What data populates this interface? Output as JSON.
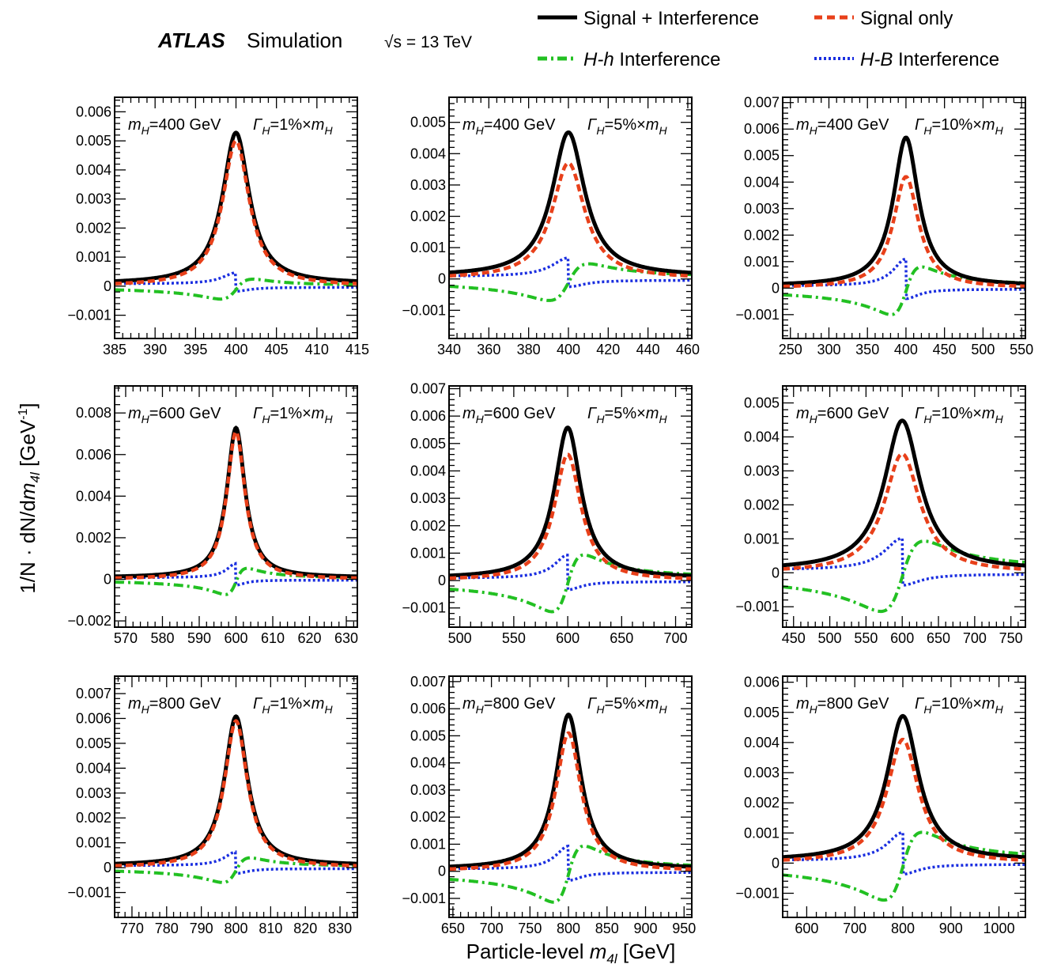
{
  "header": {
    "experiment": "ATLAS",
    "label": "Simulation",
    "energy": "√s = 13 TeV"
  },
  "legend": [
    {
      "label": "Signal + Interference",
      "color": "#000000",
      "style": "solid"
    },
    {
      "label": "Signal only",
      "color": "#e8401a",
      "style": "dashed"
    },
    {
      "label_italic": "H-h",
      "label_rest": " Interference",
      "color": "#22c022",
      "style": "dashdot"
    },
    {
      "label_italic": "H-B",
      "label_rest": " Interference",
      "color": "#1a2ee0",
      "style": "dotted"
    }
  ],
  "y_axis_label": "1/N · dN/dm4l [GeV-1]",
  "x_axis_label": "Particle-level m4l [GeV]",
  "colors": {
    "sig_int": "#000000",
    "sig": "#e8401a",
    "hh": "#22c022",
    "hb": "#1a2ee0"
  },
  "chart_data": [
    {
      "type": "line",
      "mass": 400,
      "width_pct": 1,
      "mass_label": "=400 GeV",
      "width_label": "=1%×",
      "xlim": [
        385,
        415
      ],
      "ylim": [
        -0.0018,
        0.0065
      ],
      "xticks": [
        385,
        390,
        395,
        400,
        405,
        410,
        415
      ],
      "yticks": [
        -0.001,
        0,
        0.001,
        0.002,
        0.003,
        0.004,
        0.005,
        0.006
      ],
      "ytick_labels": [
        "−0.001",
        "0",
        "0.001",
        "0.002",
        "0.003",
        "0.004",
        "0.005",
        "0.006"
      ],
      "peak_sig_int": 0.0052,
      "peak_sig": 0.005,
      "hh_amp": 0.00038,
      "hb_amp": 0.00045
    },
    {
      "type": "line",
      "mass": 400,
      "width_pct": 5,
      "mass_label": "=400 GeV",
      "width_label": "=5%×",
      "xlim": [
        340,
        462
      ],
      "ylim": [
        -0.0019,
        0.0058
      ],
      "xticks": [
        340,
        360,
        380,
        400,
        420,
        440,
        460
      ],
      "yticks": [
        -0.001,
        0,
        0.001,
        0.002,
        0.003,
        0.004,
        0.005
      ],
      "ytick_labels": [
        "−0.001",
        "0",
        "0.001",
        "0.002",
        "0.003",
        "0.004",
        "0.005"
      ],
      "peak_sig_int": 0.0046,
      "peak_sig": 0.0037,
      "hh_amp": 0.00065,
      "hb_amp": 0.0007
    },
    {
      "type": "line",
      "mass": 400,
      "width_pct": 10,
      "mass_label": "=400 GeV",
      "width_label": "=10%×",
      "xlim": [
        240,
        555
      ],
      "ylim": [
        -0.0019,
        0.0072
      ],
      "xticks": [
        250,
        300,
        350,
        400,
        450,
        500,
        550
      ],
      "yticks": [
        -0.001,
        0,
        0.001,
        0.002,
        0.003,
        0.004,
        0.005,
        0.006,
        0.007
      ],
      "ytick_labels": [
        "−0.001",
        "0",
        "0.001",
        "0.002",
        "0.003",
        "0.004",
        "0.005",
        "0.006",
        "0.007"
      ],
      "peak_sig_int": 0.0056,
      "peak_sig": 0.0042,
      "hh_amp": 0.001,
      "hb_amp": 0.0012
    },
    {
      "type": "line",
      "mass": 600,
      "width_pct": 1,
      "mass_label": "=600 GeV",
      "width_label": "=1%×",
      "xlim": [
        567,
        633
      ],
      "ylim": [
        -0.0023,
        0.0093
      ],
      "xticks": [
        570,
        580,
        590,
        600,
        610,
        620,
        630
      ],
      "yticks": [
        -0.002,
        0,
        0.002,
        0.004,
        0.006,
        0.008
      ],
      "ytick_labels": [
        "−0.002",
        "0",
        "0.002",
        "0.004",
        "0.006",
        "0.008"
      ],
      "peak_sig_int": 0.0072,
      "peak_sig": 0.0071,
      "hh_amp": 0.0007,
      "hb_amp": 0.0008
    },
    {
      "type": "line",
      "mass": 600,
      "width_pct": 5,
      "mass_label": "=600 GeV",
      "width_label": "=5%×",
      "xlim": [
        490,
        715
      ],
      "ylim": [
        -0.0017,
        0.0071
      ],
      "xticks": [
        500,
        550,
        600,
        650,
        700
      ],
      "yticks": [
        -0.001,
        0,
        0.001,
        0.002,
        0.003,
        0.004,
        0.005,
        0.006,
        0.007
      ],
      "ytick_labels": [
        "−0.001",
        "0",
        "0.001",
        "0.002",
        "0.003",
        "0.004",
        "0.005",
        "0.006",
        "0.007"
      ],
      "peak_sig_int": 0.0055,
      "peak_sig": 0.0046,
      "hh_amp": 0.00115,
      "hb_amp": 0.001
    },
    {
      "type": "line",
      "mass": 600,
      "width_pct": 10,
      "mass_label": "=600 GeV",
      "width_label": "=10%×",
      "xlim": [
        435,
        770
      ],
      "ylim": [
        -0.0016,
        0.0055
      ],
      "xticks": [
        450,
        500,
        550,
        600,
        650,
        700,
        750
      ],
      "yticks": [
        -0.001,
        0,
        0.001,
        0.002,
        0.003,
        0.004,
        0.005
      ],
      "ytick_labels": [
        "−0.001",
        "0",
        "0.001",
        "0.002",
        "0.003",
        "0.004",
        "0.005"
      ],
      "peak_sig_int": 0.0044,
      "peak_sig": 0.0035,
      "hh_amp": 0.00115,
      "hb_amp": 0.0011
    },
    {
      "type": "line",
      "mass": 800,
      "width_pct": 1,
      "mass_label": "=800 GeV",
      "width_label": "=1%×",
      "xlim": [
        765,
        835
      ],
      "ylim": [
        -0.002,
        0.0077
      ],
      "xticks": [
        770,
        780,
        790,
        800,
        810,
        820,
        830
      ],
      "yticks": [
        -0.001,
        0,
        0.001,
        0.002,
        0.003,
        0.004,
        0.005,
        0.006,
        0.007
      ],
      "ytick_labels": [
        "−0.001",
        "0",
        "0.001",
        "0.002",
        "0.003",
        "0.004",
        "0.005",
        "0.006",
        "0.007"
      ],
      "peak_sig_int": 0.006,
      "peak_sig": 0.0059,
      "hh_amp": 0.00055,
      "hb_amp": 0.00065
    },
    {
      "type": "line",
      "mass": 800,
      "width_pct": 5,
      "mass_label": "=800 GeV",
      "width_label": "=5%×",
      "xlim": [
        645,
        960
      ],
      "ylim": [
        -0.0017,
        0.0072
      ],
      "xticks": [
        650,
        700,
        750,
        800,
        850,
        900,
        950
      ],
      "yticks": [
        -0.001,
        0,
        0.001,
        0.002,
        0.003,
        0.004,
        0.005,
        0.006,
        0.007
      ],
      "ytick_labels": [
        "−0.001",
        "0",
        "0.001",
        "0.002",
        "0.003",
        "0.004",
        "0.005",
        "0.006",
        "0.007"
      ],
      "peak_sig_int": 0.0057,
      "peak_sig": 0.0051,
      "hh_amp": 0.00115,
      "hb_amp": 0.001
    },
    {
      "type": "line",
      "mass": 800,
      "width_pct": 10,
      "mass_label": "=800 GeV",
      "width_label": "=10%×",
      "xlim": [
        550,
        1055
      ],
      "ylim": [
        -0.0018,
        0.0062
      ],
      "xticks": [
        600,
        700,
        800,
        900,
        1000
      ],
      "yticks": [
        -0.001,
        0,
        0.001,
        0.002,
        0.003,
        0.004,
        0.005,
        0.006
      ],
      "ytick_labels": [
        "−0.001",
        "0",
        "0.001",
        "0.002",
        "0.003",
        "0.004",
        "0.005",
        "0.006"
      ],
      "peak_sig_int": 0.0048,
      "peak_sig": 0.0041,
      "hh_amp": 0.00125,
      "hb_amp": 0.0011
    }
  ]
}
